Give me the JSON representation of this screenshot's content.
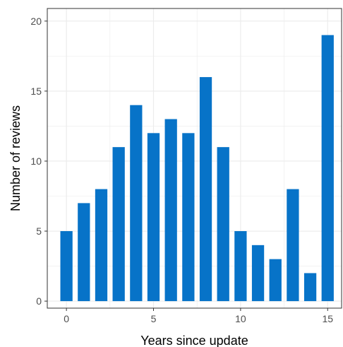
{
  "chart_data": {
    "type": "bar",
    "x": [
      0,
      1,
      2,
      3,
      4,
      5,
      6,
      7,
      8,
      9,
      10,
      11,
      12,
      13,
      14,
      15
    ],
    "values": [
      5,
      7,
      8,
      11,
      14,
      12,
      13,
      12,
      16,
      11,
      5,
      4,
      3,
      8,
      2,
      19
    ],
    "xlabel": "Years since update",
    "ylabel": "Number of reviews",
    "xlim": [
      -1.1,
      15.8
    ],
    "ylim": [
      -0.5,
      20.9
    ],
    "xticks": [
      0,
      5,
      10,
      15
    ],
    "yticks": [
      0,
      5,
      10,
      15,
      20
    ],
    "grid": true,
    "bar_color": "#0773c8",
    "grid_color": "#ebebeb",
    "panel_border_color": "#333333"
  }
}
